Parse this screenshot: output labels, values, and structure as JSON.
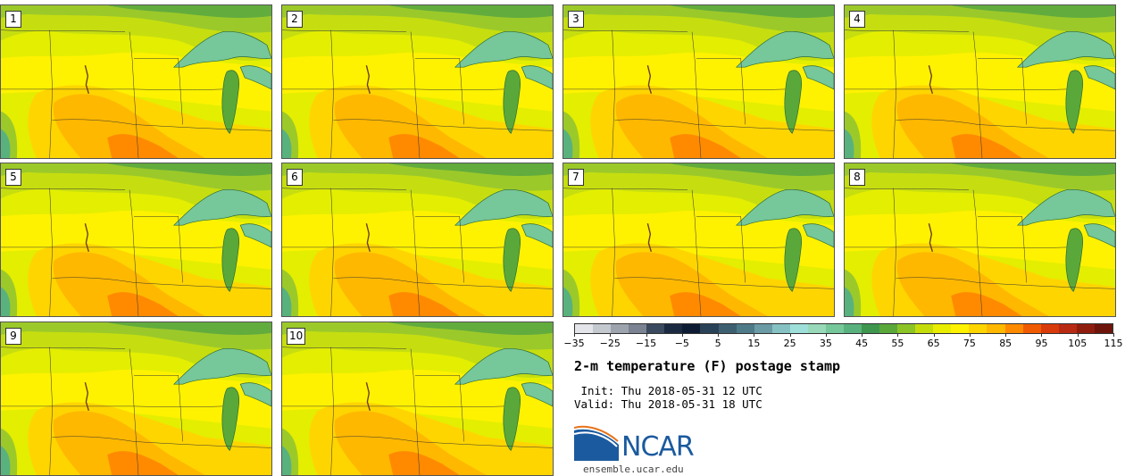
{
  "panels": [
    {
      "label": "1"
    },
    {
      "label": "2"
    },
    {
      "label": "3"
    },
    {
      "label": "4"
    },
    {
      "label": "5"
    },
    {
      "label": "6"
    },
    {
      "label": "7"
    },
    {
      "label": "8"
    },
    {
      "label": "9"
    },
    {
      "label": "10"
    }
  ],
  "colorbar": {
    "colors": [
      "#e3e5ea",
      "#c4c8cf",
      "#9ea4ae",
      "#7b8291",
      "#3b4a5e",
      "#1b2a40",
      "#0e1c33",
      "#2a4257",
      "#3e5f70",
      "#4f7a88",
      "#6b9ba5",
      "#86c2c3",
      "#9ee0d9",
      "#97d9b8",
      "#76c79a",
      "#59b27e",
      "#3e964f",
      "#5aa83a",
      "#8cc425",
      "#c5dc0b",
      "#e9ed00",
      "#fff200",
      "#ffd500",
      "#ffb800",
      "#ff8a00",
      "#f05a00",
      "#d83a0c",
      "#b82a12",
      "#8f1d0e",
      "#6d150b"
    ],
    "ticks": [
      "−35",
      "−25",
      "−15",
      "−5",
      "5",
      "15",
      "25",
      "35",
      "45",
      "55",
      "65",
      "75",
      "85",
      "95",
      "105",
      "115"
    ]
  },
  "title": "2-m temperature (F) postage stamp",
  "init": " Init: Thu 2018-05-31 12 UTC",
  "valid": "Valid: Thu 2018-05-31 18 UTC",
  "logo": {
    "name": "NCAR",
    "url": "ensemble.ucar.edu"
  }
}
